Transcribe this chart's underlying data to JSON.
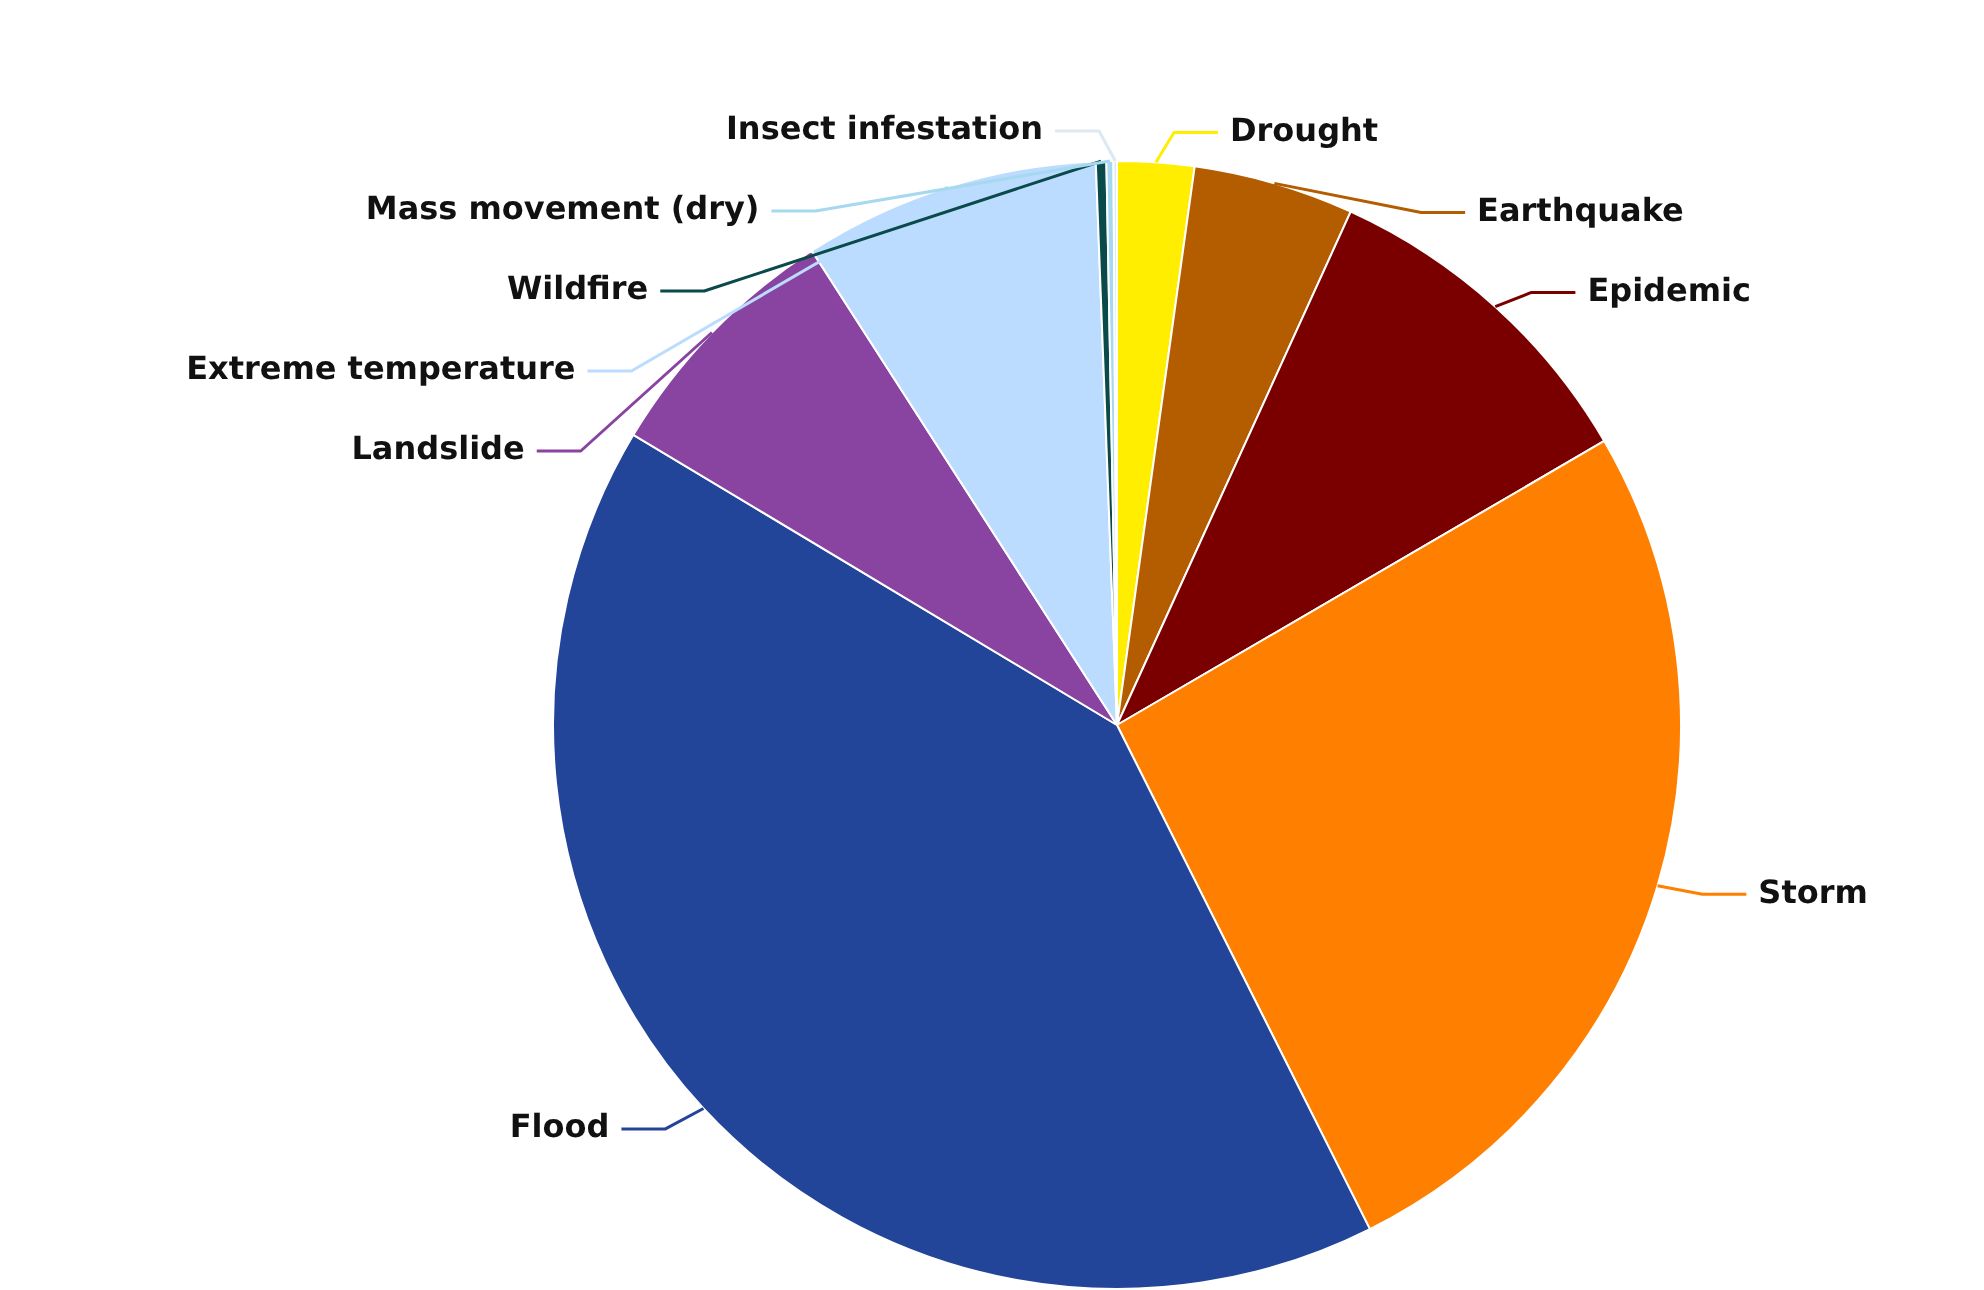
{
  "chart_data": {
    "type": "pie",
    "categories": [
      "Drought",
      "Earthquake",
      "Epidemic",
      "Storm",
      "Flood",
      "Landslide",
      "Extreme temperature",
      "Wildfire",
      "Mass movement (dry)",
      "Insect infestation"
    ],
    "values": [
      2.2,
      4.6,
      9.8,
      26,
      41,
      7.3,
      8.5,
      0.3,
      0.2,
      0.1
    ],
    "colors": [
      "#ffee00",
      "#b35c00",
      "#7a0000",
      "#ff8000",
      "#224499",
      "#8844a0",
      "#bcdcff",
      "#0a4a4a",
      "#a6d8f0",
      "#dde8f0"
    ]
  }
}
